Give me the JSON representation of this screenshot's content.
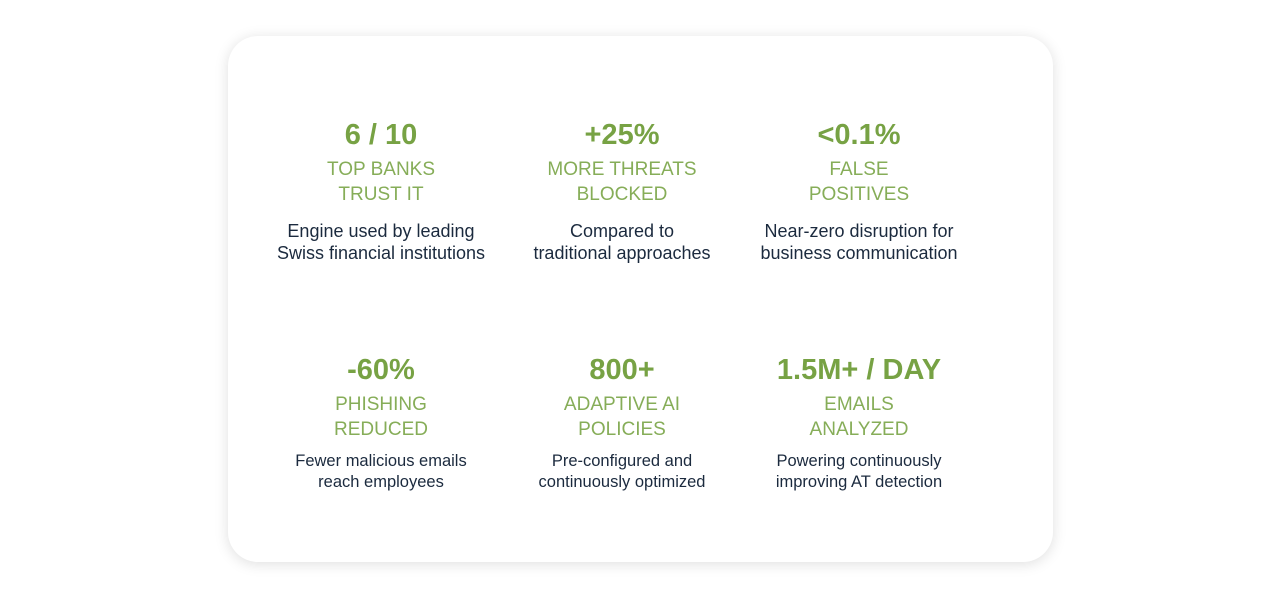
{
  "colors": {
    "value": "#77a244",
    "label": "#86ad58",
    "text": "#1b2a3e"
  },
  "stats": [
    {
      "value": "6 / 10",
      "label": [
        "TOP BANKS",
        "TRUST IT"
      ],
      "description": [
        "Engine used by leading",
        "Swiss financial institutions"
      ]
    },
    {
      "value": "+25%",
      "label": [
        "MORE THREATS",
        "BLOCKED"
      ],
      "description": [
        "Compared to",
        "traditional approaches"
      ]
    },
    {
      "value": "<0.1%",
      "label": [
        "FALSE",
        "POSITIVES"
      ],
      "description": [
        "Near-zero disruption for",
        "business communication"
      ]
    },
    {
      "value": "-60%",
      "label": [
        "PHISHING",
        "REDUCED"
      ],
      "description": [
        "Fewer malicious emails",
        "reach employees"
      ]
    },
    {
      "value": "800+",
      "label": [
        "ADAPTIVE AI",
        "POLICIES"
      ],
      "description": [
        "Pre-configured and",
        "continuously optimized"
      ]
    },
    {
      "value": "1.5M+ / DAY",
      "label": [
        "EMAILS",
        "ANALYZED"
      ],
      "description": [
        "Powering continuously",
        "improving AT detection"
      ]
    }
  ]
}
